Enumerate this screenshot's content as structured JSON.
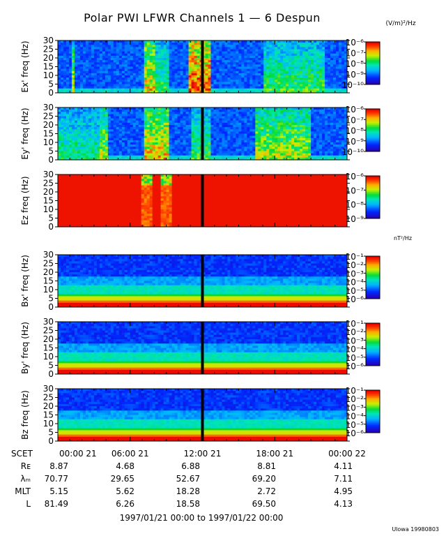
{
  "title": "Polar PWI LFWR Channels 1 — 6 Despun",
  "credit": "Ulowa 19980803",
  "date_range": "1997/01/21 00:00 to 1997/01/22 00:00",
  "efield_unit": "(V/m)²/Hz",
  "bfield_unit": "nT²/Hz",
  "chart_data": [
    {
      "type": "heatmap",
      "ylabel": "Ex' freq (Hz)",
      "ylim": [
        0,
        30
      ],
      "yticks": [
        0,
        5,
        10,
        15,
        20,
        25,
        30
      ],
      "colorbar": {
        "labels": [
          "10⁻⁶",
          "10⁻⁷",
          "10⁻⁸",
          "10⁻⁹",
          "10⁻¹⁰"
        ]
      },
      "shape": "bursts",
      "bursts": [
        [
          0.04,
          0.05,
          0.7
        ],
        [
          0.29,
          0.33,
          0.8
        ],
        [
          0.33,
          0.38,
          0.6
        ],
        [
          0.45,
          0.52,
          0.95
        ],
        [
          0.71,
          0.92,
          0.6
        ]
      ]
    },
    {
      "type": "heatmap",
      "ylabel": "Ey' freq (Hz)",
      "ylim": [
        0,
        30
      ],
      "yticks": [
        0,
        5,
        10,
        15,
        20,
        25,
        30
      ],
      "colorbar": {
        "labels": [
          "10⁻⁶",
          "10⁻⁷",
          "10⁻⁸",
          "10⁻⁹",
          "10⁻¹⁰"
        ]
      },
      "shape": "bursts",
      "bursts": [
        [
          0.0,
          0.14,
          0.55
        ],
        [
          0.14,
          0.17,
          0.7
        ],
        [
          0.29,
          0.38,
          0.8
        ],
        [
          0.46,
          0.52,
          0.6
        ],
        [
          0.68,
          0.87,
          0.7
        ]
      ]
    },
    {
      "type": "heatmap",
      "ylabel": "Ez freq (Hz)",
      "ylim": [
        0,
        30
      ],
      "yticks": [
        0,
        5,
        10,
        15,
        20,
        25,
        30
      ],
      "colorbar": {
        "labels": [
          "10⁻⁶",
          "10⁻⁷",
          "10⁻⁸",
          "10⁻⁹"
        ]
      },
      "shape": "saturated"
    },
    {
      "type": "heatmap",
      "ylabel": "Bx' freq (Hz)",
      "ylim": [
        0,
        30
      ],
      "yticks": [
        0,
        5,
        10,
        15,
        20,
        25,
        30
      ],
      "colorbar": {
        "labels": [
          "10⁻¹",
          "10⁻²",
          "10⁻³",
          "10⁻⁴",
          "10⁻⁵",
          "10⁻⁶"
        ]
      },
      "shape": "lowfreq"
    },
    {
      "type": "heatmap",
      "ylabel": "By' freq (Hz)",
      "ylim": [
        0,
        30
      ],
      "yticks": [
        0,
        5,
        10,
        15,
        20,
        25,
        30
      ],
      "colorbar": {
        "labels": [
          "10⁻¹",
          "10⁻²",
          "10⁻³",
          "10⁻⁴",
          "10⁻⁵",
          "10⁻⁶"
        ]
      },
      "shape": "lowfreq"
    },
    {
      "type": "heatmap",
      "ylabel": "Bz freq (Hz)",
      "ylim": [
        0,
        30
      ],
      "yticks": [
        0,
        5,
        10,
        15,
        20,
        25,
        30
      ],
      "colorbar": {
        "labels": [
          "10⁻¹",
          "10⁻²",
          "10⁻³",
          "10⁻⁴",
          "10⁻⁵",
          "10⁻⁶"
        ]
      },
      "shape": "lowfreq"
    }
  ],
  "x_axis": {
    "label": "SCET",
    "ticks": [
      "00:00 21",
      "06:00 21",
      "12:00 21",
      "18:00 21",
      "00:00 22"
    ],
    "data_gap_fraction": 0.5
  },
  "ephemeris": [
    {
      "label": "Rᴇ",
      "values": [
        "8.87",
        "4.68",
        "6.88",
        "8.81",
        "4.11"
      ]
    },
    {
      "label": "λₘ",
      "values": [
        "70.77",
        "29.65",
        "52.67",
        "69.20",
        "7.11"
      ]
    },
    {
      "label": "MLT",
      "values": [
        "5.15",
        "5.62",
        "18.28",
        "2.72",
        "4.95"
      ]
    },
    {
      "label": "L",
      "values": [
        "81.49",
        "6.26",
        "18.58",
        "69.50",
        "4.13"
      ]
    }
  ]
}
